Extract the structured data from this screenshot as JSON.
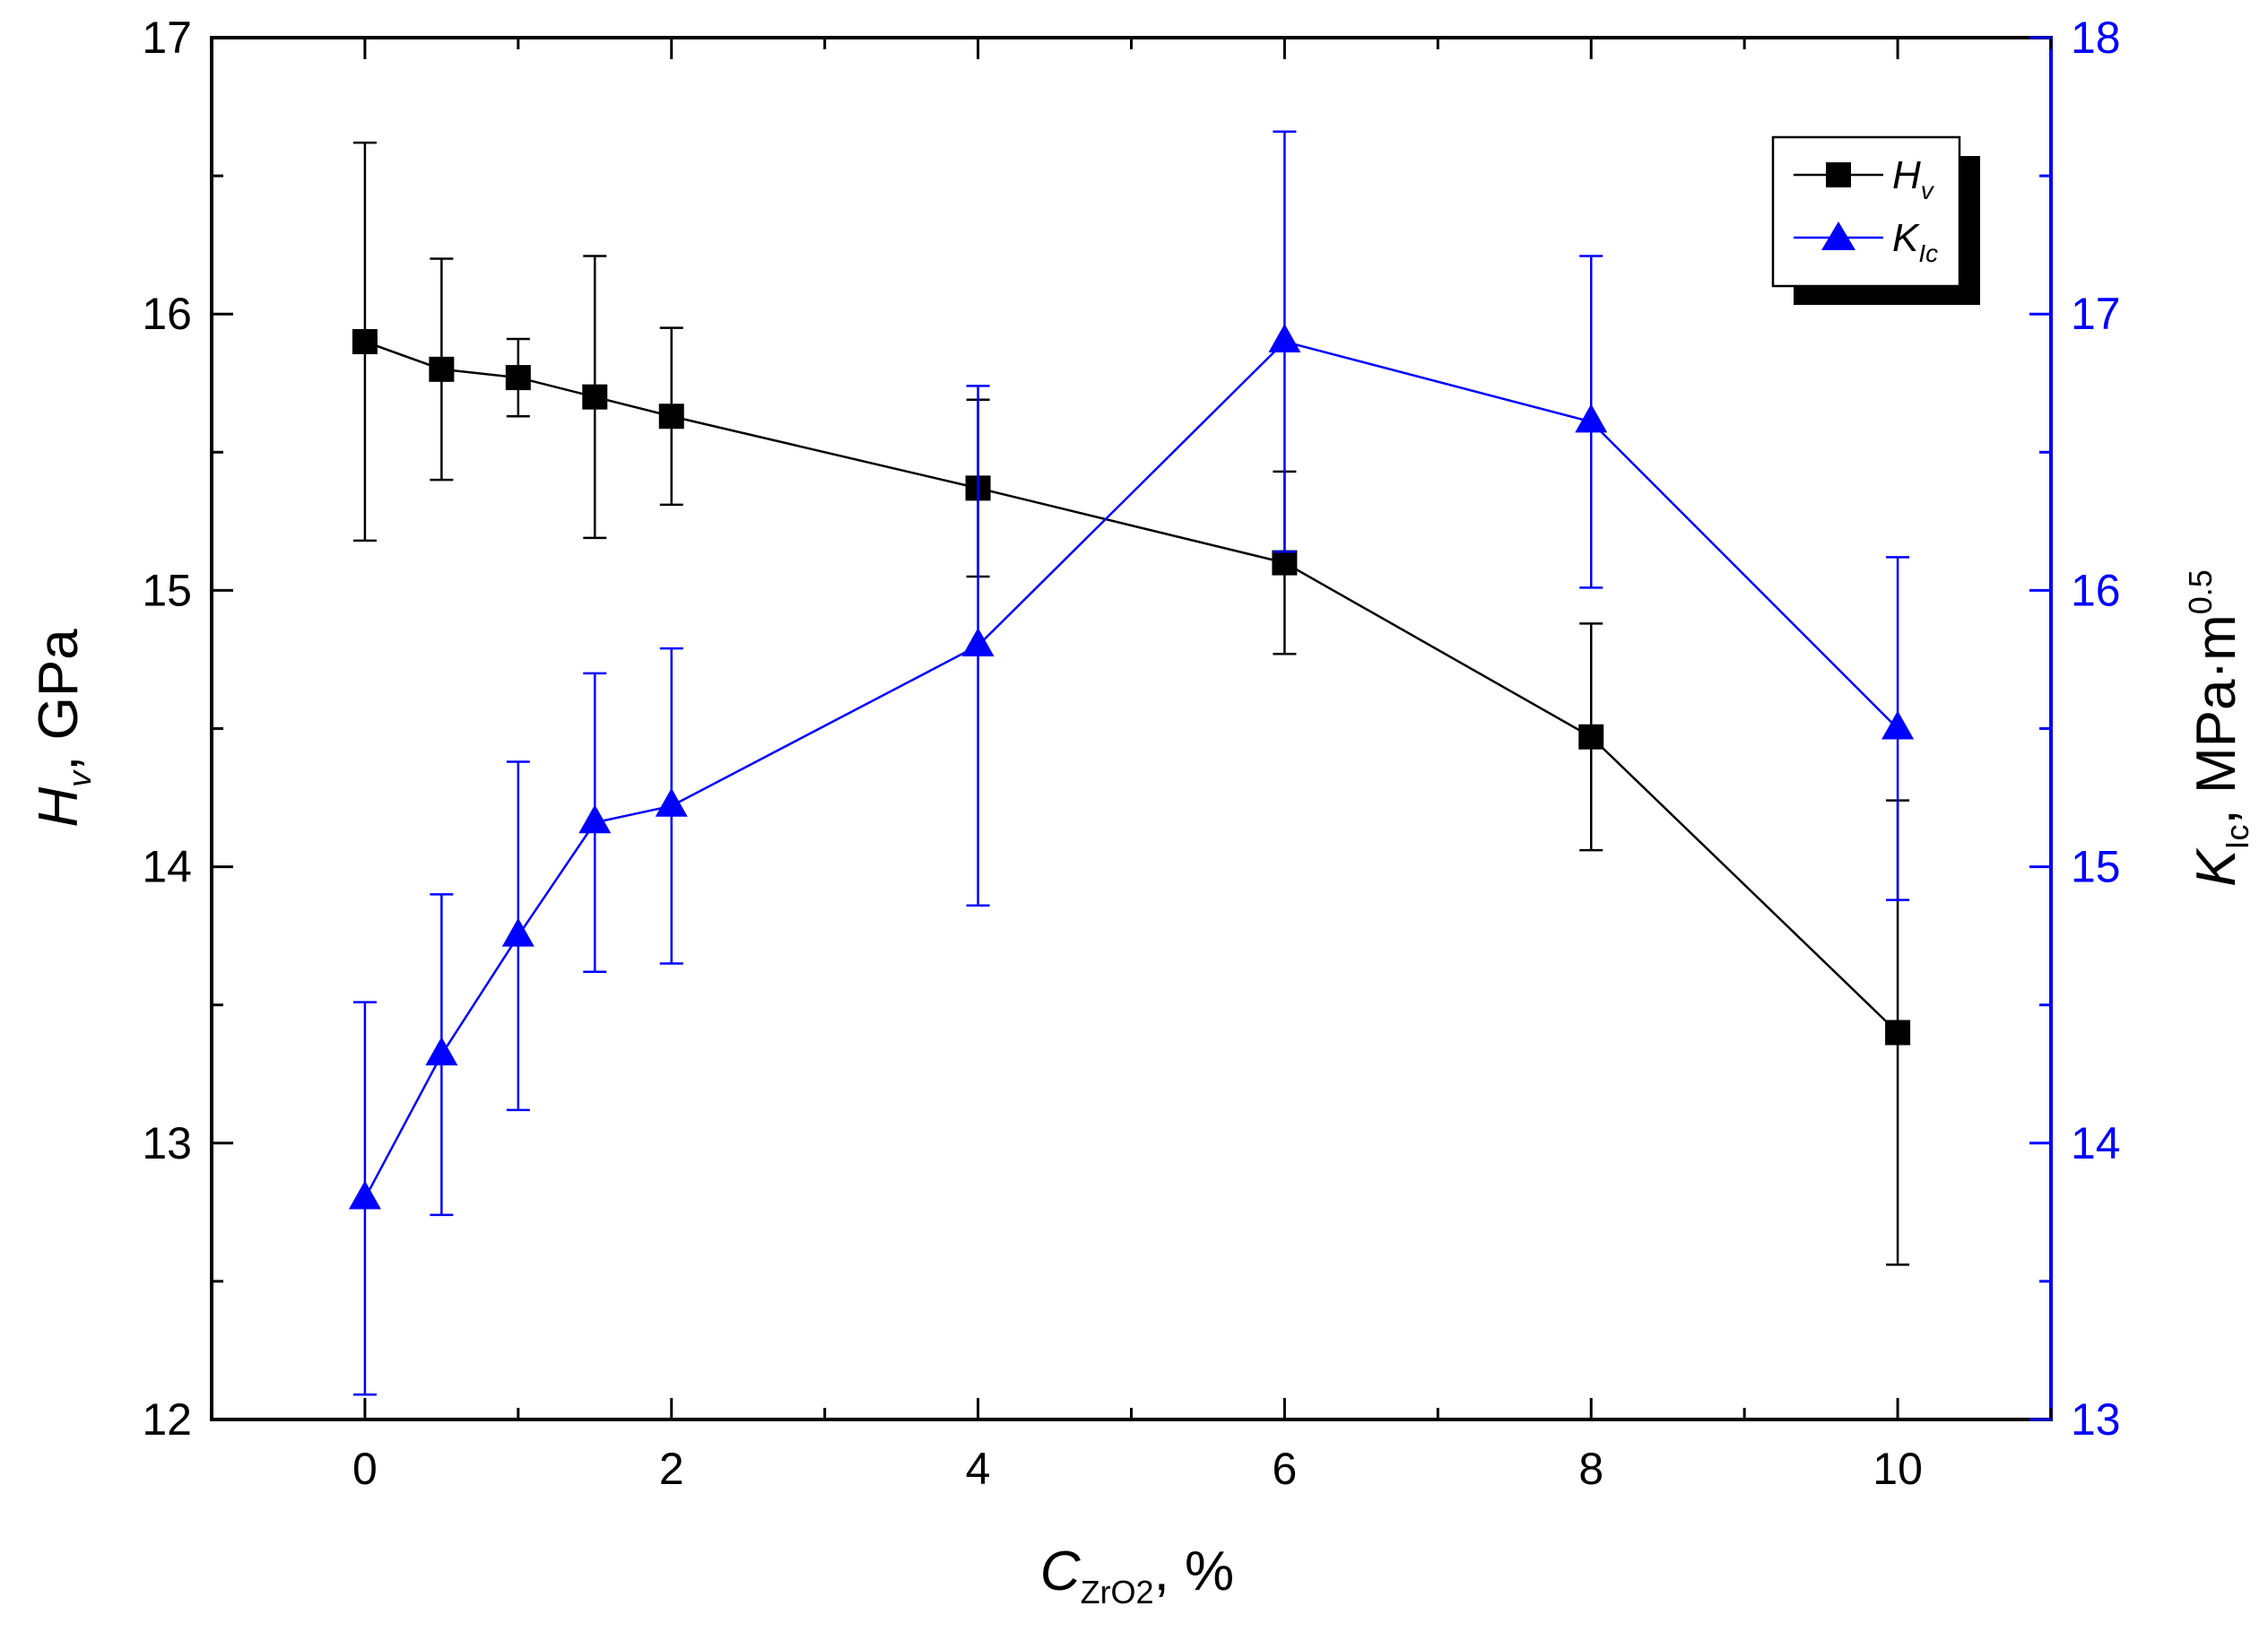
{
  "colors": {
    "hv": "#000000",
    "klc": "#0000ff",
    "axis_left": "#000000",
    "axis_right": "#0000ff",
    "background": "#ffffff"
  },
  "chart_data": {
    "type": "line",
    "title": "",
    "xlabel": {
      "symbol": "C",
      "subscript": "ZrO2",
      "suffix": ", %"
    },
    "ylabel_left": {
      "symbol": "H",
      "subscript": "v",
      "suffix": ", GPa"
    },
    "ylabel_right": {
      "symbol": "K",
      "subscript": "Ic",
      "suffix": ", MPa·m",
      "superscript": "0.5"
    },
    "xlim": [
      -1,
      11
    ],
    "ylim_left": [
      12,
      17
    ],
    "ylim_right": [
      13,
      18
    ],
    "x_ticks": [
      0,
      2,
      4,
      6,
      8,
      10
    ],
    "x_tick_labels": [
      "0",
      "2",
      "4",
      "6",
      "8",
      "10"
    ],
    "y_left_ticks": [
      12,
      13,
      14,
      15,
      16,
      17
    ],
    "y_left_tick_labels": [
      "12",
      "13",
      "14",
      "15",
      "16",
      "17"
    ],
    "y_right_ticks": [
      13,
      14,
      15,
      16,
      17,
      18
    ],
    "y_right_tick_labels": [
      "13",
      "14",
      "15",
      "16",
      "17",
      "18"
    ],
    "legend_position": "top-right",
    "series": [
      {
        "name": "Hv",
        "legend_symbol": "H",
        "legend_subscript": "v",
        "axis": "left",
        "marker": "square",
        "color": "#000000",
        "x": [
          0,
          0.5,
          1,
          1.5,
          2,
          4,
          6,
          8,
          10
        ],
        "values": [
          15.9,
          15.8,
          15.77,
          15.7,
          15.63,
          15.37,
          15.1,
          14.47,
          13.4
        ],
        "errors": [
          0.72,
          0.4,
          0.14,
          0.51,
          0.32,
          0.32,
          0.33,
          0.41,
          0.84
        ]
      },
      {
        "name": "KIc",
        "legend_symbol": "K",
        "legend_subscript": "Ic",
        "axis": "right",
        "marker": "triangle",
        "color": "#0000ff",
        "x": [
          0,
          0.5,
          1,
          1.5,
          2,
          4,
          6,
          8,
          10
        ],
        "values": [
          13.8,
          14.32,
          14.75,
          15.16,
          15.22,
          15.8,
          16.9,
          16.61,
          15.5
        ],
        "errors": [
          0.71,
          0.58,
          0.63,
          0.54,
          0.57,
          0.94,
          0.76,
          0.6,
          0.62
        ]
      }
    ]
  }
}
